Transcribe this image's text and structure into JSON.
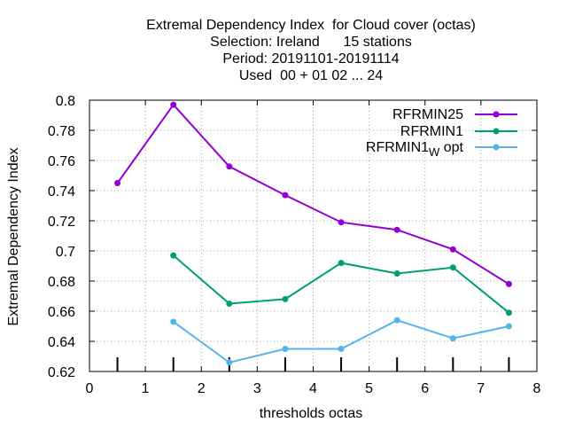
{
  "chart_data": {
    "type": "line",
    "title_lines": [
      "Extremal Dependency Index  for Cloud cover (octas)",
      "Selection: Ireland      15 stations",
      "Period: 20191101-20191114",
      "Used  00 + 01 02 ... 24"
    ],
    "xlabel": "thresholds octas",
    "ylabel": "Extremal Dependency Index",
    "xlim": [
      0,
      8
    ],
    "ylim": [
      0.62,
      0.8
    ],
    "x_ticks": [
      0,
      1,
      2,
      3,
      4,
      5,
      6,
      7,
      8
    ],
    "y_ticks": [
      0.62,
      0.64,
      0.66,
      0.68,
      0.7,
      0.72,
      0.74,
      0.76,
      0.78,
      0.8
    ],
    "y_tick_labels": [
      "0.62",
      "0.64",
      "0.66",
      "0.68",
      "0.7",
      "0.72",
      "0.74",
      "0.76",
      "0.78",
      "0.8"
    ],
    "grid": true,
    "legend_position": "top-right",
    "count_marks_x": [
      0.5,
      1.5,
      2.5,
      3.5,
      4.5,
      5.5,
      6.5,
      7.5
    ],
    "series": [
      {
        "name": "RFRMIN25",
        "color": "#9400d3",
        "x": [
          0.5,
          1.5,
          2.5,
          3.5,
          4.5,
          5.5,
          6.5,
          7.5
        ],
        "values": [
          0.745,
          0.797,
          0.756,
          0.737,
          0.719,
          0.714,
          0.701,
          0.678
        ]
      },
      {
        "name": "RFRMIN1",
        "color": "#009e73",
        "x": [
          1.5,
          2.5,
          3.5,
          4.5,
          5.5,
          6.5,
          7.5
        ],
        "values": [
          0.697,
          0.665,
          0.668,
          0.692,
          0.685,
          0.689,
          0.659
        ]
      },
      {
        "name": "RFRMIN1",
        "name_sub": "W",
        "name_suffix": "opt",
        "color": "#56b4e9",
        "x": [
          1.5,
          2.5,
          3.5,
          4.5,
          5.5,
          6.5,
          7.5
        ],
        "values": [
          0.653,
          0.626,
          0.635,
          0.635,
          0.654,
          0.642,
          0.65
        ]
      }
    ]
  }
}
